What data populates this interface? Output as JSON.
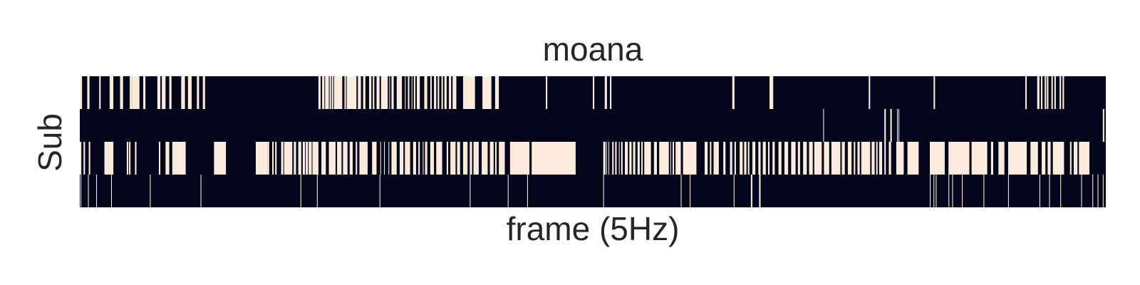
{
  "chart_data": {
    "type": "heatmap",
    "title": "moana",
    "xlabel": "frame (5Hz)",
    "ylabel": "Sub",
    "colors": {
      "off": "#03051a",
      "on": "#faebdd"
    },
    "rows": [
      {
        "name": "",
        "on_ranges": [
          [
            0,
            3
          ],
          [
            10,
            13
          ],
          [
            26,
            28
          ],
          [
            40,
            45
          ],
          [
            54,
            58
          ],
          [
            67,
            70
          ],
          [
            70,
            75
          ],
          [
            75,
            80
          ],
          [
            85,
            88
          ],
          [
            104,
            108
          ],
          [
            110,
            115
          ],
          [
            120,
            123
          ],
          [
            136,
            141
          ],
          [
            145,
            150
          ],
          [
            157,
            160
          ],
          [
            165,
            168
          ],
          [
            320,
            323
          ],
          [
            325,
            328
          ],
          [
            329,
            334
          ],
          [
            335,
            337
          ],
          [
            338,
            340
          ],
          [
            341,
            352
          ],
          [
            355,
            357
          ],
          [
            358,
            371
          ],
          [
            373,
            377
          ],
          [
            380,
            383
          ],
          [
            388,
            391
          ],
          [
            393,
            395
          ],
          [
            398,
            402
          ],
          [
            404,
            413
          ],
          [
            415,
            416
          ],
          [
            418,
            421
          ],
          [
            425,
            432
          ],
          [
            436,
            437
          ],
          [
            440,
            442
          ],
          [
            445,
            446
          ],
          [
            448,
            450
          ],
          [
            452,
            456
          ],
          [
            462,
            466
          ],
          [
            470,
            472
          ],
          [
            475,
            478
          ],
          [
            480,
            482
          ],
          [
            485,
            487
          ],
          [
            489,
            492
          ],
          [
            495,
            498
          ],
          [
            500,
            505
          ],
          [
            514,
            530
          ],
          [
            540,
            552
          ],
          [
            557,
            562
          ],
          [
            625,
            627
          ],
          [
            688,
            690
          ],
          [
            704,
            707
          ],
          [
            711,
            713
          ],
          [
            875,
            878
          ],
          [
            925,
            930
          ],
          [
            1058,
            1060
          ],
          [
            1145,
            1147
          ],
          [
            1268,
            1270
          ],
          [
            1284,
            1287
          ],
          [
            1289,
            1291
          ],
          [
            1294,
            1296
          ],
          [
            1297,
            1299
          ],
          [
            1303,
            1305
          ],
          [
            1307,
            1309
          ],
          [
            1314,
            1316
          ],
          [
            1318,
            1320
          ]
        ]
      },
      {
        "name": "",
        "on_ranges": [
          [
            997,
            998
          ],
          [
            1079,
            1081
          ],
          [
            1087,
            1089
          ],
          [
            1096,
            1097
          ],
          [
            1098,
            1099
          ],
          [
            1372,
            1374
          ]
        ]
      },
      {
        "name": "",
        "on_ranges": [
          [
            0,
            2
          ],
          [
            5,
            7
          ],
          [
            12,
            14
          ],
          [
            33,
            45
          ],
          [
            63,
            65
          ],
          [
            66,
            68
          ],
          [
            74,
            76
          ],
          [
            106,
            108
          ],
          [
            115,
            120
          ],
          [
            124,
            142
          ],
          [
            180,
            196
          ],
          [
            236,
            252
          ],
          [
            252,
            254
          ],
          [
            258,
            260
          ],
          [
            262,
            264
          ],
          [
            270,
            273
          ],
          [
            274,
            285
          ],
          [
            287,
            290
          ],
          [
            293,
            297
          ],
          [
            299,
            302
          ],
          [
            303,
            306
          ],
          [
            307,
            311
          ],
          [
            312,
            320
          ],
          [
            324,
            330
          ],
          [
            334,
            343
          ],
          [
            345,
            351
          ],
          [
            353,
            359
          ],
          [
            362,
            366
          ],
          [
            370,
            372
          ],
          [
            375,
            386
          ],
          [
            392,
            398
          ],
          [
            403,
            404
          ],
          [
            408,
            409
          ],
          [
            414,
            415
          ],
          [
            418,
            425
          ],
          [
            429,
            434
          ],
          [
            436,
            443
          ],
          [
            447,
            451
          ],
          [
            454,
            456
          ],
          [
            460,
            461
          ],
          [
            463,
            466
          ],
          [
            470,
            475
          ],
          [
            478,
            486
          ],
          [
            492,
            494
          ],
          [
            497,
            504
          ],
          [
            506,
            510
          ],
          [
            514,
            520
          ],
          [
            523,
            526
          ],
          [
            528,
            535
          ],
          [
            539,
            547
          ],
          [
            550,
            555
          ],
          [
            557,
            559
          ],
          [
            562,
            570
          ],
          [
            577,
            603
          ],
          [
            606,
            665
          ],
          [
            702,
            705
          ],
          [
            706,
            707
          ],
          [
            709,
            710
          ],
          [
            714,
            716
          ],
          [
            718,
            720
          ],
          [
            723,
            724
          ],
          [
            726,
            728
          ],
          [
            731,
            735
          ],
          [
            737,
            740
          ],
          [
            742,
            745
          ],
          [
            748,
            751
          ],
          [
            753,
            755
          ],
          [
            757,
            766
          ],
          [
            770,
            774
          ],
          [
            777,
            790
          ],
          [
            792,
            793
          ],
          [
            795,
            797
          ],
          [
            799,
            806
          ],
          [
            809,
            827
          ],
          [
            838,
            842
          ],
          [
            845,
            847
          ],
          [
            850,
            857
          ],
          [
            863,
            866
          ],
          [
            872,
            875
          ],
          [
            878,
            880
          ],
          [
            885,
            889
          ],
          [
            891,
            894
          ],
          [
            896,
            898
          ],
          [
            902,
            906
          ],
          [
            910,
            913
          ],
          [
            916,
            920
          ],
          [
            923,
            925
          ],
          [
            929,
            932
          ],
          [
            937,
            941
          ],
          [
            945,
            950
          ],
          [
            954,
            960
          ],
          [
            963,
            966
          ],
          [
            970,
            975
          ],
          [
            978,
            983
          ],
          [
            985,
            995
          ],
          [
            998,
            1005
          ],
          [
            1008,
            1020
          ],
          [
            1022,
            1026
          ],
          [
            1030,
            1035
          ],
          [
            1038,
            1040
          ],
          [
            1043,
            1046
          ],
          [
            1048,
            1060
          ],
          [
            1062,
            1066
          ],
          [
            1068,
            1070
          ],
          [
            1072,
            1076
          ],
          [
            1079,
            1081
          ],
          [
            1085,
            1088
          ],
          [
            1095,
            1105
          ],
          [
            1110,
            1125
          ],
          [
            1140,
            1160
          ],
          [
            1165,
            1193
          ],
          [
            1196,
            1217
          ],
          [
            1222,
            1225
          ],
          [
            1232,
            1240
          ],
          [
            1245,
            1270
          ],
          [
            1275,
            1285
          ],
          [
            1290,
            1295
          ],
          [
            1298,
            1302
          ],
          [
            1305,
            1320
          ],
          [
            1328,
            1330
          ],
          [
            1333,
            1338
          ],
          [
            1340,
            1354
          ]
        ]
      },
      {
        "name": "",
        "on_ranges": [
          [
            1,
            2
          ],
          [
            11,
            12
          ],
          [
            22,
            23
          ],
          [
            42,
            43
          ],
          [
            94,
            95
          ],
          [
            162,
            163
          ],
          [
            296,
            297
          ],
          [
            318,
            319
          ],
          [
            402,
            403
          ],
          [
            523,
            524
          ],
          [
            574,
            575
          ],
          [
            600,
            601
          ],
          [
            702,
            703
          ],
          [
            806,
            807
          ],
          [
            818,
            819
          ],
          [
            877,
            878
          ],
          [
            900,
            902
          ],
          [
            911,
            913
          ],
          [
            1140,
            1141
          ],
          [
            1145,
            1146
          ],
          [
            1148,
            1149
          ],
          [
            1165,
            1166
          ],
          [
            1170,
            1171
          ],
          [
            1183,
            1184
          ],
          [
            1212,
            1213
          ],
          [
            1245,
            1246
          ],
          [
            1287,
            1288
          ],
          [
            1300,
            1301
          ],
          [
            1315,
            1316
          ],
          [
            1343,
            1344
          ],
          [
            1358,
            1359
          ],
          [
            1365,
            1366
          ],
          [
            1372,
            1373
          ]
        ]
      }
    ],
    "n_frames": 1376,
    "xlim": [
      0,
      1376
    ],
    "grid": false,
    "legend": "none"
  }
}
